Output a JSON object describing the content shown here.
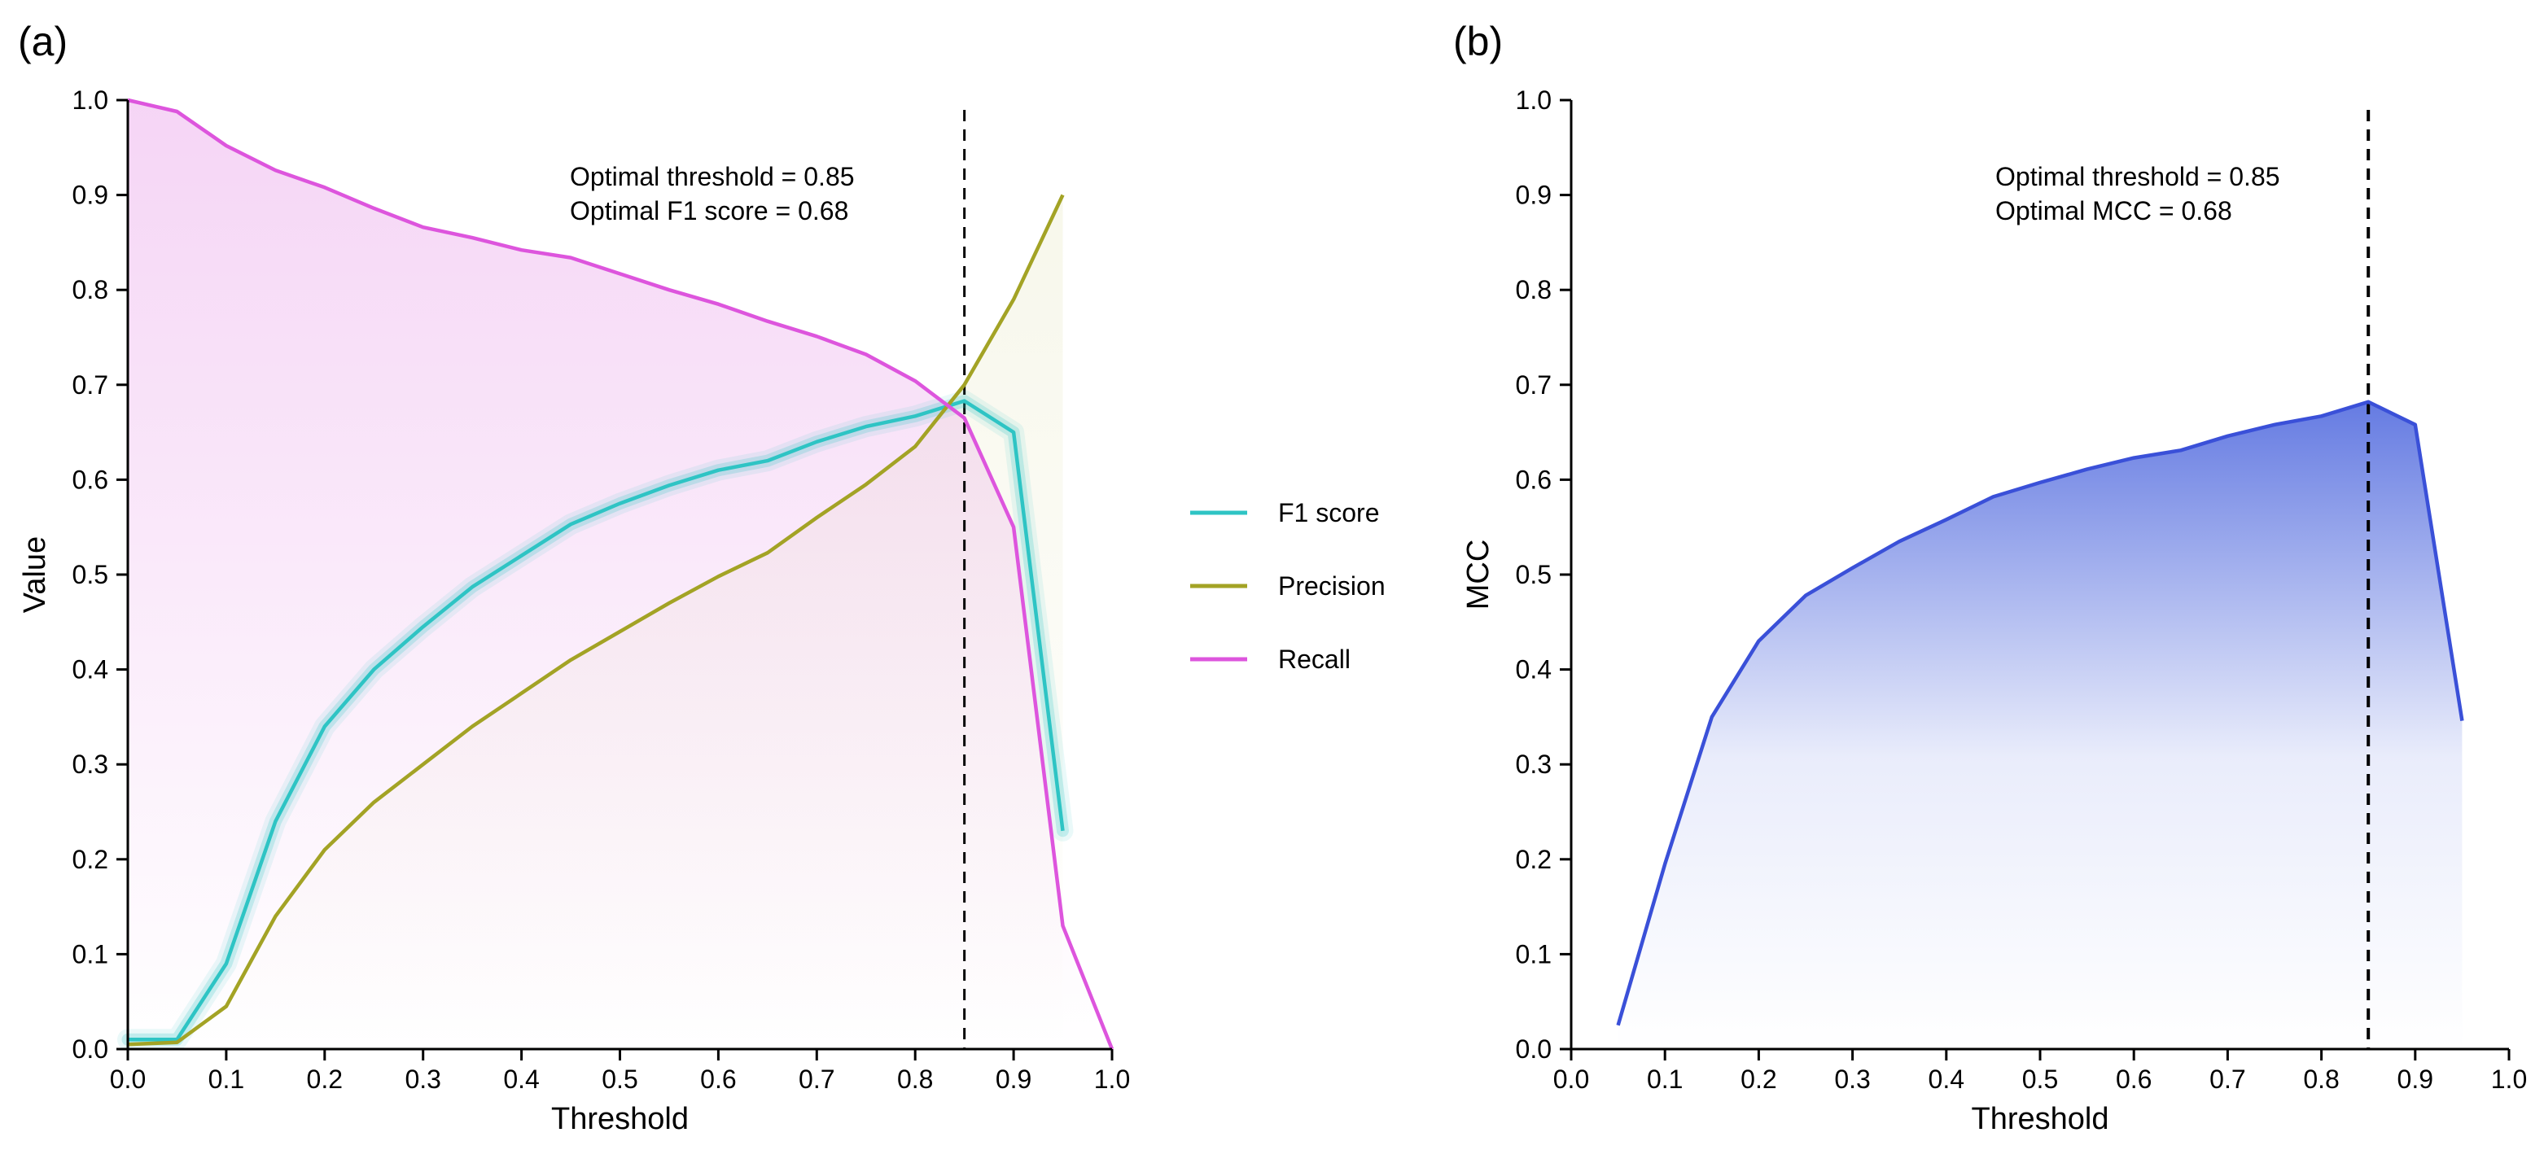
{
  "panels": {
    "a": {
      "letter": "(a)"
    },
    "b": {
      "letter": "(b)"
    }
  },
  "chart_data": [
    {
      "type": "line",
      "panel": "a",
      "title": "",
      "xlabel": "Threshold",
      "ylabel": "Value",
      "xlim": [
        0,
        1
      ],
      "ylim": [
        0,
        1
      ],
      "xticks": [
        "0.0",
        "0.1",
        "0.2",
        "0.3",
        "0.4",
        "0.5",
        "0.6",
        "0.7",
        "0.8",
        "0.9",
        "1.0"
      ],
      "yticks": [
        "0.0",
        "0.1",
        "0.2",
        "0.3",
        "0.4",
        "0.5",
        "0.6",
        "0.7",
        "0.8",
        "0.9",
        "1.0"
      ],
      "grid": false,
      "legend": "right",
      "vline": 0.85,
      "annotations": [
        "Optimal threshold = 0.85",
        "Optimal F1 score = 0.68"
      ],
      "series": [
        {
          "name": "F1 score",
          "color": "#2ec4c4",
          "glow": true,
          "fill": false,
          "x": [
            0,
            0.05,
            0.1,
            0.15,
            0.2,
            0.25,
            0.3,
            0.35,
            0.4,
            0.45,
            0.5,
            0.55,
            0.6,
            0.65,
            0.7,
            0.75,
            0.8,
            0.85,
            0.9,
            0.95
          ],
          "y": [
            0.01,
            0.01,
            0.09,
            0.24,
            0.34,
            0.4,
            0.445,
            0.487,
            0.52,
            0.553,
            0.575,
            0.594,
            0.61,
            0.62,
            0.64,
            0.656,
            0.667,
            0.683,
            0.65,
            0.23
          ]
        },
        {
          "name": "Precision",
          "color": "#a3a325",
          "glow": false,
          "fill": true,
          "fillColor": "#c8c870",
          "x": [
            0,
            0.05,
            0.1,
            0.15,
            0.2,
            0.25,
            0.3,
            0.35,
            0.4,
            0.45,
            0.5,
            0.55,
            0.6,
            0.65,
            0.7,
            0.75,
            0.8,
            0.85,
            0.9,
            0.95
          ],
          "y": [
            0.005,
            0.007,
            0.045,
            0.14,
            0.21,
            0.26,
            0.3,
            0.34,
            0.375,
            0.41,
            0.44,
            0.47,
            0.498,
            0.523,
            0.56,
            0.595,
            0.635,
            0.7,
            0.79,
            0.9
          ]
        },
        {
          "name": "Recall",
          "color": "#dd55dd",
          "glow": false,
          "fill": true,
          "fillColor": "#e48ae4",
          "x": [
            0,
            0.05,
            0.1,
            0.15,
            0.2,
            0.25,
            0.3,
            0.35,
            0.4,
            0.45,
            0.5,
            0.55,
            0.6,
            0.65,
            0.7,
            0.75,
            0.8,
            0.85,
            0.9,
            0.95,
            1.0
          ],
          "y": [
            1.0,
            0.988,
            0.952,
            0.926,
            0.908,
            0.886,
            0.866,
            0.855,
            0.842,
            0.834,
            0.817,
            0.8,
            0.785,
            0.767,
            0.751,
            0.732,
            0.704,
            0.665,
            0.55,
            0.13,
            0.0
          ]
        }
      ]
    },
    {
      "type": "area",
      "panel": "b",
      "title": "",
      "xlabel": "Threshold",
      "ylabel": "MCC",
      "xlim": [
        0,
        1
      ],
      "ylim": [
        0,
        1
      ],
      "xticks": [
        "0.0",
        "0.1",
        "0.2",
        "0.3",
        "0.4",
        "0.5",
        "0.6",
        "0.7",
        "0.8",
        "0.9",
        "1.0"
      ],
      "yticks": [
        "0.0",
        "0.1",
        "0.2",
        "0.3",
        "0.4",
        "0.5",
        "0.6",
        "0.7",
        "0.8",
        "0.9",
        "1.0"
      ],
      "grid": false,
      "vline": 0.85,
      "annotations": [
        "Optimal threshold = 0.85",
        "Optimal MCC = 0.68"
      ],
      "series": [
        {
          "color": "#3a50d8",
          "glow": false,
          "fill": true,
          "fillColor": "#4a64dd",
          "x": [
            0.05,
            0.1,
            0.15,
            0.2,
            0.25,
            0.3,
            0.35,
            0.4,
            0.45,
            0.5,
            0.55,
            0.6,
            0.65,
            0.7,
            0.75,
            0.8,
            0.85,
            0.9,
            0.95
          ],
          "y": [
            0.025,
            0.195,
            0.35,
            0.43,
            0.478,
            0.507,
            0.535,
            0.558,
            0.582,
            0.597,
            0.611,
            0.623,
            0.631,
            0.646,
            0.658,
            0.667,
            0.682,
            0.658,
            0.346
          ]
        }
      ]
    }
  ]
}
